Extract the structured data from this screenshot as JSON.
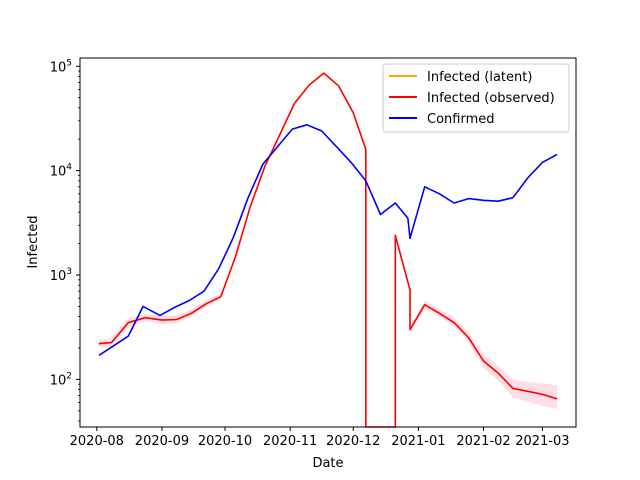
{
  "chart_data": {
    "type": "line",
    "title": "",
    "xlabel": "Date",
    "ylabel": "Infected",
    "yscale": "log",
    "ylim": [
      35,
      120000
    ],
    "xlim": [
      "2020-07-24",
      "2021-03-17"
    ],
    "grid": false,
    "legend_position": "top-right",
    "x_ticks": [
      "2020-08-01",
      "2020-09-01",
      "2020-10-01",
      "2020-11-01",
      "2020-12-01",
      "2021-01-01",
      "2021-02-01",
      "2021-03-01"
    ],
    "x_tick_labels": [
      "2020-08",
      "2020-09",
      "2020-10",
      "2020-11",
      "2020-12",
      "2021-01",
      "2021-02",
      "2021-03"
    ],
    "y_ticks": [
      100,
      1000,
      10000,
      100000
    ],
    "y_tick_labels": [
      [
        "10",
        "2"
      ],
      [
        "10",
        "3"
      ],
      [
        "10",
        "4"
      ],
      [
        "10",
        "5"
      ]
    ],
    "series": [
      {
        "name": "Infected (latent)",
        "color": "#ffa500",
        "points": []
      },
      {
        "name": "Infected (observed)",
        "color": "#ff0000",
        "band_color": "#ffc0cb",
        "points": [
          [
            "2020-08-02",
            220
          ],
          [
            "2020-08-08",
            225
          ],
          [
            "2020-08-16",
            350
          ],
          [
            "2020-08-24",
            390
          ],
          [
            "2020-09-01",
            370
          ],
          [
            "2020-09-08",
            375
          ],
          [
            "2020-09-15",
            430
          ],
          [
            "2020-09-22",
            530
          ],
          [
            "2020-09-29",
            620
          ],
          [
            "2020-10-06",
            1500
          ],
          [
            "2020-10-13",
            4500
          ],
          [
            "2020-10-20",
            11000
          ],
          [
            "2020-10-27",
            22000
          ],
          [
            "2020-11-03",
            44000
          ],
          [
            "2020-11-10",
            66000
          ],
          [
            "2020-11-17",
            86000
          ],
          [
            "2020-11-24",
            65000
          ],
          [
            "2020-12-01",
            36000
          ],
          [
            "2020-12-07",
            16000
          ],
          [
            "2020-12-07",
            30
          ],
          [
            "2020-12-21",
            30
          ],
          [
            "2020-12-21",
            2400
          ],
          [
            "2020-12-28",
            720
          ],
          [
            "2020-12-28",
            300
          ],
          [
            "2021-01-04",
            520
          ],
          [
            "2021-01-11",
            430
          ],
          [
            "2021-01-18",
            350
          ],
          [
            "2021-01-25",
            250
          ],
          [
            "2021-02-01",
            150
          ],
          [
            "2021-02-08",
            115
          ],
          [
            "2021-02-15",
            82
          ],
          [
            "2021-02-22",
            77
          ],
          [
            "2021-03-01",
            72
          ],
          [
            "2021-03-08",
            65
          ]
        ],
        "band_upper": [
          [
            "2020-08-02",
            240
          ],
          [
            "2020-08-08",
            250
          ],
          [
            "2020-08-16",
            390
          ],
          [
            "2020-08-24",
            420
          ],
          [
            "2020-09-01",
            410
          ],
          [
            "2020-09-08",
            410
          ],
          [
            "2020-09-15",
            470
          ],
          [
            "2020-09-22",
            570
          ],
          [
            "2020-09-29",
            660
          ],
          [
            "2020-12-28",
            320
          ],
          [
            "2021-01-04",
            570
          ],
          [
            "2021-01-11",
            470
          ],
          [
            "2021-01-18",
            390
          ],
          [
            "2021-01-25",
            280
          ],
          [
            "2021-02-01",
            175
          ],
          [
            "2021-02-08",
            135
          ],
          [
            "2021-02-15",
            100
          ],
          [
            "2021-02-22",
            95
          ],
          [
            "2021-03-01",
            92
          ],
          [
            "2021-03-08",
            88
          ]
        ],
        "band_lower": [
          [
            "2020-08-02",
            205
          ],
          [
            "2020-08-08",
            205
          ],
          [
            "2020-08-16",
            320
          ],
          [
            "2020-08-24",
            360
          ],
          [
            "2020-09-01",
            340
          ],
          [
            "2020-09-08",
            345
          ],
          [
            "2020-09-15",
            400
          ],
          [
            "2020-09-22",
            495
          ],
          [
            "2020-09-29",
            585
          ],
          [
            "2020-12-28",
            285
          ],
          [
            "2021-01-04",
            480
          ],
          [
            "2021-01-11",
            400
          ],
          [
            "2021-01-18",
            320
          ],
          [
            "2021-01-25",
            225
          ],
          [
            "2021-02-01",
            128
          ],
          [
            "2021-02-08",
            97
          ],
          [
            "2021-02-15",
            67
          ],
          [
            "2021-02-22",
            61
          ],
          [
            "2021-03-01",
            56
          ],
          [
            "2021-03-08",
            52
          ]
        ]
      },
      {
        "name": "Confirmed",
        "color": "#0000ff",
        "points": [
          [
            "2020-08-02",
            170
          ],
          [
            "2020-08-09",
            210
          ],
          [
            "2020-08-16",
            260
          ],
          [
            "2020-08-23",
            500
          ],
          [
            "2020-08-31",
            410
          ],
          [
            "2020-09-07",
            490
          ],
          [
            "2020-09-14",
            570
          ],
          [
            "2020-09-21",
            700
          ],
          [
            "2020-09-28",
            1150
          ],
          [
            "2020-10-05",
            2300
          ],
          [
            "2020-10-12",
            5500
          ],
          [
            "2020-10-19",
            11500
          ],
          [
            "2020-10-26",
            17000
          ],
          [
            "2020-11-02",
            25000
          ],
          [
            "2020-11-09",
            27500
          ],
          [
            "2020-11-16",
            24000
          ],
          [
            "2020-11-23",
            17000
          ],
          [
            "2020-11-30",
            12000
          ],
          [
            "2020-12-07",
            8000
          ],
          [
            "2020-12-14",
            3800
          ],
          [
            "2020-12-21",
            4900
          ],
          [
            "2020-12-27",
            3500
          ],
          [
            "2020-12-28",
            2250
          ],
          [
            "2021-01-04",
            7000
          ],
          [
            "2021-01-11",
            6000
          ],
          [
            "2021-01-18",
            4900
          ],
          [
            "2021-01-25",
            5400
          ],
          [
            "2021-02-01",
            5200
          ],
          [
            "2021-02-08",
            5100
          ],
          [
            "2021-02-15",
            5500
          ],
          [
            "2021-02-22",
            8500
          ],
          [
            "2021-03-01",
            12000
          ],
          [
            "2021-03-08",
            14300
          ]
        ]
      }
    ]
  }
}
